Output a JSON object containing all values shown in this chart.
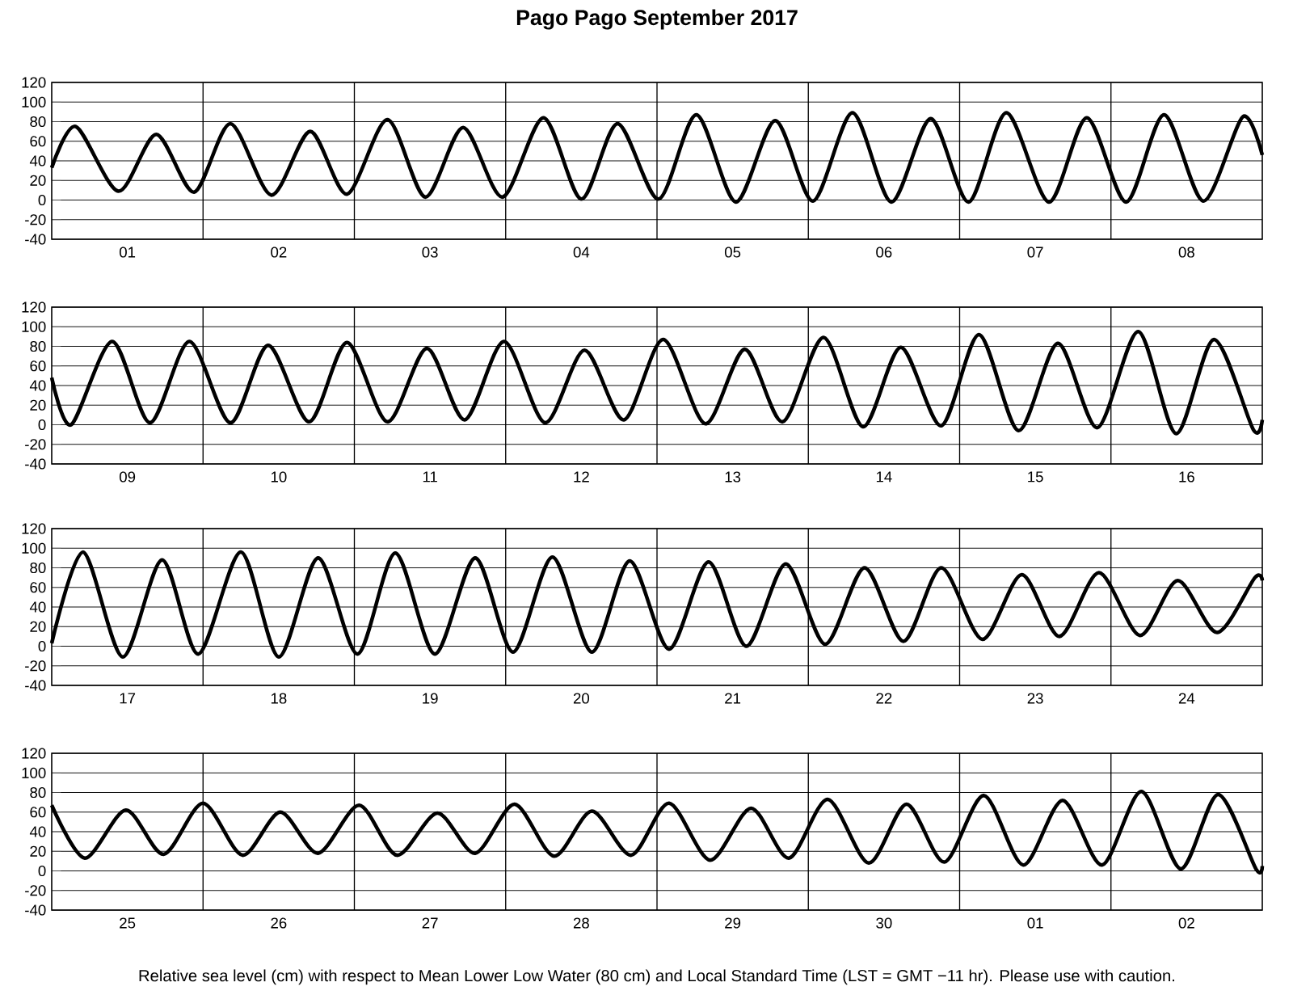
{
  "chart_data": [
    {
      "type": "line",
      "title": "Pago Pago September 2017",
      "color": "#000000",
      "grid": "y",
      "xlim": [
        "2017-09-01T00:00",
        "2017-09-09T00:00"
      ],
      "ylim": [
        -40,
        120
      ],
      "yticks": [
        -40,
        -20,
        0,
        20,
        40,
        60,
        80,
        100,
        120
      ],
      "xticks": [
        {
          "value": "2017-09-01T12:00",
          "label": "01"
        },
        {
          "value": "2017-09-02T12:00",
          "label": "02"
        },
        {
          "value": "2017-09-03T12:00",
          "label": "03"
        },
        {
          "value": "2017-09-04T12:00",
          "label": "04"
        },
        {
          "value": "2017-09-05T12:00",
          "label": "05"
        },
        {
          "value": "2017-09-06T12:00",
          "label": "06"
        },
        {
          "value": "2017-09-07T12:00",
          "label": "07"
        },
        {
          "value": "2017-09-08T12:00",
          "label": "08"
        }
      ],
      "ref_lines": [
        {
          "axis": "x",
          "value": "2017-09-02T00:00"
        },
        {
          "axis": "x",
          "value": "2017-09-03T00:00"
        },
        {
          "axis": "x",
          "value": "2017-09-04T00:00"
        },
        {
          "axis": "x",
          "value": "2017-09-05T00:00"
        },
        {
          "axis": "x",
          "value": "2017-09-06T00:00"
        },
        {
          "axis": "x",
          "value": "2017-09-07T00:00"
        },
        {
          "axis": "x",
          "value": "2017-09-08T00:00"
        }
      ],
      "x": [
        "2017-09-01T00:00",
        "2017-09-01T03:50",
        "2017-09-01T10:35",
        "2017-09-01T16:35",
        "2017-09-01T22:35",
        "2017-09-02T04:20",
        "2017-09-02T10:50",
        "2017-09-02T17:00",
        "2017-09-02T22:50",
        "2017-09-03T05:15",
        "2017-09-03T11:15",
        "2017-09-03T17:15",
        "2017-09-03T23:30",
        "2017-09-04T06:00",
        "2017-09-04T12:00",
        "2017-09-04T17:45",
        "2017-09-05T00:15",
        "2017-09-05T06:15",
        "2017-09-05T12:30",
        "2017-09-05T18:45",
        "2017-09-06T00:45",
        "2017-09-06T07:00",
        "2017-09-06T13:10",
        "2017-09-06T19:25",
        "2017-09-07T01:25",
        "2017-09-07T07:25",
        "2017-09-07T14:10",
        "2017-09-07T20:10",
        "2017-09-08T02:25",
        "2017-09-08T08:25",
        "2017-09-08T14:40",
        "2017-09-08T20:55",
        "2017-09-09T00:00"
      ],
      "values": [
        33,
        75,
        9,
        67,
        8,
        78,
        5,
        70,
        6,
        82,
        3,
        74,
        3,
        84,
        1,
        78,
        1,
        87,
        -2,
        81,
        -1,
        89,
        -2,
        83,
        -2,
        89,
        -2,
        84,
        -2,
        87,
        -1,
        85,
        46
      ]
    },
    {
      "type": "line",
      "color": "#000000",
      "grid": "y",
      "xlim": [
        "2017-09-09T00:00",
        "2017-09-17T00:00"
      ],
      "ylim": [
        -40,
        120
      ],
      "yticks": [
        -40,
        -20,
        0,
        20,
        40,
        60,
        80,
        100,
        120
      ],
      "xticks": [
        {
          "value": "2017-09-09T12:00",
          "label": "09"
        },
        {
          "value": "2017-09-10T12:00",
          "label": "10"
        },
        {
          "value": "2017-09-11T12:00",
          "label": "11"
        },
        {
          "value": "2017-09-12T12:00",
          "label": "12"
        },
        {
          "value": "2017-09-13T12:00",
          "label": "13"
        },
        {
          "value": "2017-09-14T12:00",
          "label": "14"
        },
        {
          "value": "2017-09-15T12:00",
          "label": "15"
        },
        {
          "value": "2017-09-16T12:00",
          "label": "16"
        }
      ],
      "ref_lines": [
        {
          "axis": "x",
          "value": "2017-09-10T00:00"
        },
        {
          "axis": "x",
          "value": "2017-09-11T00:00"
        },
        {
          "axis": "x",
          "value": "2017-09-12T00:00"
        },
        {
          "axis": "x",
          "value": "2017-09-13T00:00"
        },
        {
          "axis": "x",
          "value": "2017-09-14T00:00"
        },
        {
          "axis": "x",
          "value": "2017-09-15T00:00"
        },
        {
          "axis": "x",
          "value": "2017-09-16T00:00"
        }
      ],
      "x": [
        "2017-09-09T00:00",
        "2017-09-09T03:05",
        "2017-09-09T09:35",
        "2017-09-09T15:35",
        "2017-09-09T21:50",
        "2017-09-10T04:20",
        "2017-09-10T10:20",
        "2017-09-10T16:50",
        "2017-09-10T22:50",
        "2017-09-11T05:15",
        "2017-09-11T11:30",
        "2017-09-11T17:30",
        "2017-09-11T23:45",
        "2017-09-12T06:15",
        "2017-09-12T12:30",
        "2017-09-12T18:45",
        "2017-09-13T01:00",
        "2017-09-13T07:40",
        "2017-09-13T13:55",
        "2017-09-13T19:55",
        "2017-09-14T02:25",
        "2017-09-14T08:40",
        "2017-09-14T14:40",
        "2017-09-14T21:05",
        "2017-09-15T03:05",
        "2017-09-15T09:20",
        "2017-09-15T15:35",
        "2017-09-15T21:50",
        "2017-09-16T04:20",
        "2017-09-16T10:20",
        "2017-09-16T16:20",
        "2017-09-16T22:35",
        "2017-09-17T00:00"
      ],
      "values": [
        48,
        0,
        85,
        2,
        85,
        2,
        81,
        3,
        84,
        3,
        78,
        5,
        85,
        2,
        76,
        5,
        87,
        1,
        77,
        3,
        89,
        -2,
        79,
        -1,
        92,
        -6,
        83,
        -3,
        95,
        -9,
        87,
        -5,
        5
      ]
    },
    {
      "type": "line",
      "color": "#000000",
      "grid": "y",
      "xlim": [
        "2017-09-17T00:00",
        "2017-09-25T00:00"
      ],
      "ylim": [
        -40,
        120
      ],
      "yticks": [
        -40,
        -20,
        0,
        20,
        40,
        60,
        80,
        100,
        120
      ],
      "xticks": [
        {
          "value": "2017-09-17T12:00",
          "label": "17"
        },
        {
          "value": "2017-09-18T12:00",
          "label": "18"
        },
        {
          "value": "2017-09-19T12:00",
          "label": "19"
        },
        {
          "value": "2017-09-20T12:00",
          "label": "20"
        },
        {
          "value": "2017-09-21T12:00",
          "label": "21"
        },
        {
          "value": "2017-09-22T12:00",
          "label": "22"
        },
        {
          "value": "2017-09-23T12:00",
          "label": "23"
        },
        {
          "value": "2017-09-24T12:00",
          "label": "24"
        }
      ],
      "ref_lines": [
        {
          "axis": "x",
          "value": "2017-09-18T00:00"
        },
        {
          "axis": "x",
          "value": "2017-09-19T00:00"
        },
        {
          "axis": "x",
          "value": "2017-09-20T00:00"
        },
        {
          "axis": "x",
          "value": "2017-09-21T00:00"
        },
        {
          "axis": "x",
          "value": "2017-09-22T00:00"
        },
        {
          "axis": "x",
          "value": "2017-09-23T00:00"
        },
        {
          "axis": "x",
          "value": "2017-09-24T00:00"
        }
      ],
      "x": [
        "2017-09-17T00:00",
        "2017-09-17T05:00",
        "2017-09-17T11:15",
        "2017-09-17T17:30",
        "2017-09-17T23:15",
        "2017-09-18T06:00",
        "2017-09-18T12:00",
        "2017-09-18T18:15",
        "2017-09-19T00:30",
        "2017-09-19T06:30",
        "2017-09-19T12:45",
        "2017-09-19T19:10",
        "2017-09-20T01:10",
        "2017-09-20T07:25",
        "2017-09-20T13:40",
        "2017-09-20T19:40",
        "2017-09-21T01:55",
        "2017-09-21T08:10",
        "2017-09-21T14:10",
        "2017-09-21T20:25",
        "2017-09-22T02:40",
        "2017-09-22T08:55",
        "2017-09-22T15:05",
        "2017-09-22T21:05",
        "2017-09-23T03:35",
        "2017-09-23T09:50",
        "2017-09-23T15:50",
        "2017-09-23T22:05",
        "2017-09-24T04:35",
        "2017-09-24T10:35",
        "2017-09-24T16:50",
        "2017-09-24T22:50",
        "2017-09-25T00:00"
      ],
      "values": [
        3,
        96,
        -11,
        88,
        -8,
        96,
        -11,
        90,
        -8,
        95,
        -8,
        90,
        -6,
        91,
        -6,
        87,
        -3,
        86,
        0,
        84,
        2,
        80,
        5,
        80,
        7,
        73,
        10,
        75,
        11,
        67,
        14,
        70,
        67
      ]
    },
    {
      "type": "line",
      "color": "#000000",
      "grid": "y",
      "xlim": [
        "2017-09-25T00:00",
        "2017-10-03T00:00"
      ],
      "ylim": [
        -40,
        120
      ],
      "yticks": [
        -40,
        -20,
        0,
        20,
        40,
        60,
        80,
        100,
        120
      ],
      "xticks": [
        {
          "value": "2017-09-25T12:00",
          "label": "25"
        },
        {
          "value": "2017-09-26T12:00",
          "label": "26"
        },
        {
          "value": "2017-09-27T12:00",
          "label": "27"
        },
        {
          "value": "2017-09-28T12:00",
          "label": "28"
        },
        {
          "value": "2017-09-29T12:00",
          "label": "29"
        },
        {
          "value": "2017-09-30T12:00",
          "label": "30"
        },
        {
          "value": "2017-10-01T12:00",
          "label": "01"
        },
        {
          "value": "2017-10-02T12:00",
          "label": "02"
        }
      ],
      "ref_lines": [
        {
          "axis": "x",
          "value": "2017-09-26T00:00"
        },
        {
          "axis": "x",
          "value": "2017-09-27T00:00"
        },
        {
          "axis": "x",
          "value": "2017-09-28T00:00"
        },
        {
          "axis": "x",
          "value": "2017-09-29T00:00"
        },
        {
          "axis": "x",
          "value": "2017-09-30T00:00"
        },
        {
          "axis": "x",
          "value": "2017-10-01T00:00"
        },
        {
          "axis": "x",
          "value": "2017-10-02T00:00"
        }
      ],
      "x": [
        "2017-09-25T00:00",
        "2017-09-25T05:15",
        "2017-09-25T11:45",
        "2017-09-25T17:45",
        "2017-09-26T00:00",
        "2017-09-26T06:15",
        "2017-09-26T12:15",
        "2017-09-26T18:15",
        "2017-09-27T00:45",
        "2017-09-27T06:45",
        "2017-09-27T13:10",
        "2017-09-27T19:10",
        "2017-09-28T01:25",
        "2017-09-28T07:40",
        "2017-09-28T13:40",
        "2017-09-28T19:55",
        "2017-09-29T01:55",
        "2017-09-29T08:25",
        "2017-09-29T14:55",
        "2017-09-29T20:55",
        "2017-09-30T03:05",
        "2017-09-30T09:35",
        "2017-09-30T15:35",
        "2017-09-30T21:35",
        "2017-10-01T03:50",
        "2017-10-01T10:05",
        "2017-10-01T16:20",
        "2017-10-01T22:35",
        "2017-10-02T04:50",
        "2017-10-02T11:05",
        "2017-10-02T17:00",
        "2017-10-02T23:00",
        "2017-10-03T00:00"
      ],
      "values": [
        67,
        13,
        62,
        17,
        69,
        16,
        60,
        18,
        67,
        16,
        59,
        18,
        68,
        15,
        61,
        16,
        69,
        11,
        64,
        13,
        73,
        8,
        68,
        9,
        77,
        6,
        72,
        6,
        81,
        2,
        78,
        2,
        5
      ],
      "annotations": [
        "Relative sea level (cm) with respect to Mean Lower Low Water (80 cm) and Local Standard Time (LST = GMT −11 hr). Please use with caution."
      ]
    }
  ]
}
